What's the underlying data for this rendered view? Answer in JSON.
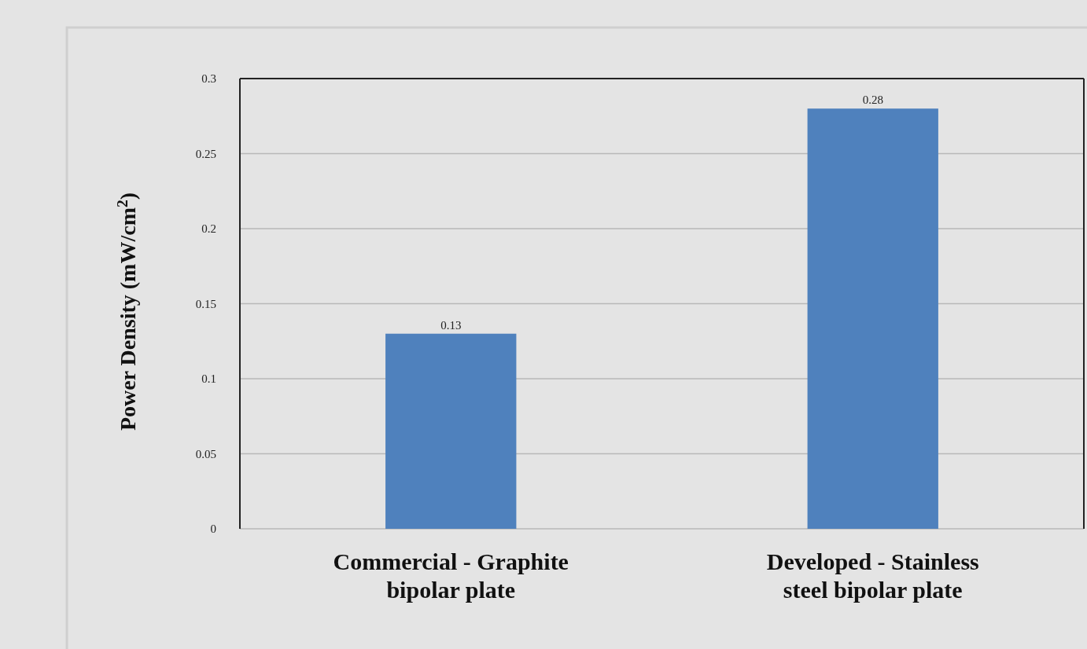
{
  "chart_data": {
    "type": "bar",
    "ylabel": "Power Density (mW/cm$^{2}$)",
    "categories": [
      "Commercial - Graphite bipolar plate",
      "Developed - Stainless steel bipolar plate"
    ],
    "values": [
      0.13,
      0.28
    ],
    "color": "#4f81bd",
    "ylim": [
      0,
      0.3
    ],
    "yticks": [
      0,
      0.05,
      0.1,
      0.15,
      0.2,
      0.25,
      0.3
    ],
    "grid": "y",
    "data_labels": true
  }
}
